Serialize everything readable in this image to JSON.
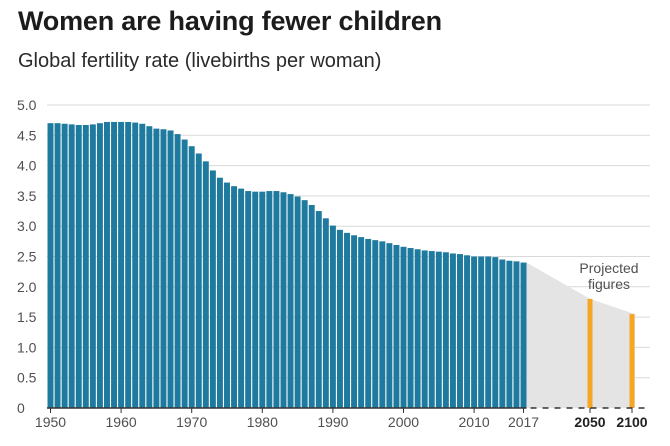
{
  "title": "Women are having fewer children",
  "subtitle": "Global fertility rate (livebirths per woman)",
  "colors": {
    "historical": "#1e7a9e",
    "projected": "#f5a623",
    "projection_band": "#e4e4e4",
    "gridline": "#d9d9d9",
    "axis": "#333333"
  },
  "chart_data": {
    "type": "bar",
    "grid": true,
    "ylim": [
      0,
      5
    ],
    "y_ticks": [
      "0",
      "0.5",
      "1.0",
      "1.5",
      "2.0",
      "2.5",
      "3.0",
      "3.5",
      "4.0",
      "4.5",
      "5.0"
    ],
    "x_ticks": [
      "1950",
      "1960",
      "1970",
      "1980",
      "1990",
      "2000",
      "2010",
      "2017"
    ],
    "x_ticks_bold": [
      "2050",
      "2100"
    ],
    "historical": {
      "x": [
        1950,
        1951,
        1952,
        1953,
        1954,
        1955,
        1956,
        1957,
        1958,
        1959,
        1960,
        1961,
        1962,
        1963,
        1964,
        1965,
        1966,
        1967,
        1968,
        1969,
        1970,
        1971,
        1972,
        1973,
        1974,
        1975,
        1976,
        1977,
        1978,
        1979,
        1980,
        1981,
        1982,
        1983,
        1984,
        1985,
        1986,
        1987,
        1988,
        1989,
        1990,
        1991,
        1992,
        1993,
        1994,
        1995,
        1996,
        1997,
        1998,
        1999,
        2000,
        2001,
        2002,
        2003,
        2004,
        2005,
        2006,
        2007,
        2008,
        2009,
        2010,
        2011,
        2012,
        2013,
        2014,
        2015,
        2016,
        2017
      ],
      "values": [
        4.7,
        4.7,
        4.69,
        4.68,
        4.67,
        4.67,
        4.68,
        4.7,
        4.72,
        4.72,
        4.72,
        4.72,
        4.71,
        4.69,
        4.65,
        4.61,
        4.6,
        4.58,
        4.52,
        4.43,
        4.32,
        4.2,
        4.07,
        3.92,
        3.8,
        3.72,
        3.66,
        3.62,
        3.58,
        3.57,
        3.57,
        3.58,
        3.58,
        3.56,
        3.53,
        3.49,
        3.43,
        3.35,
        3.25,
        3.13,
        3.01,
        2.94,
        2.89,
        2.85,
        2.82,
        2.79,
        2.77,
        2.75,
        2.72,
        2.69,
        2.66,
        2.64,
        2.62,
        2.6,
        2.59,
        2.58,
        2.57,
        2.55,
        2.54,
        2.52,
        2.5,
        2.5,
        2.5,
        2.49,
        2.45,
        2.43,
        2.42,
        2.4
      ]
    },
    "projected": {
      "annotation": [
        "Projected",
        "figures"
      ],
      "x": [
        2050,
        2100
      ],
      "values": [
        1.8,
        1.55
      ]
    }
  }
}
